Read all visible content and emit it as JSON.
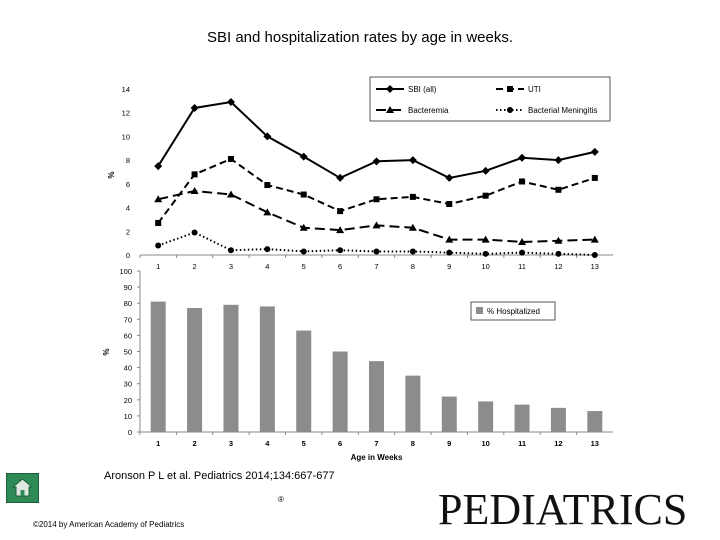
{
  "slide": {
    "title": "SBI and hospitalization rates by age in weeks.",
    "citation": "Aronson P L et al. Pediatrics 2014;134:667-677",
    "copyright": "©2014 by American Academy of Pediatrics",
    "journal_logo": "PEDIATRICS",
    "logo_mark": "®",
    "home_icon": "home-icon"
  },
  "chart_data": [
    {
      "type": "line",
      "x": [
        1,
        2,
        3,
        4,
        5,
        6,
        7,
        8,
        9,
        10,
        11,
        12,
        13
      ],
      "ylabel": "%",
      "xlabel": "",
      "ylim": [
        0,
        14
      ],
      "yticks": [
        0,
        2,
        4,
        6,
        8,
        10,
        12,
        14
      ],
      "grid": false,
      "legend_placement": "top-right",
      "series": [
        {
          "name": "SBI (all)",
          "marker": "diamond",
          "dash": "solid",
          "values": [
            7.5,
            12.4,
            12.9,
            10.0,
            8.3,
            6.5,
            7.9,
            8.0,
            6.5,
            7.1,
            8.2,
            8.0,
            8.7
          ]
        },
        {
          "name": "UTI",
          "marker": "square",
          "dash": "dashed",
          "values": [
            2.7,
            6.8,
            8.1,
            5.9,
            5.1,
            3.7,
            4.7,
            4.9,
            4.3,
            5.0,
            6.2,
            5.5,
            6.5
          ]
        },
        {
          "name": "Bacteremia",
          "marker": "triangle",
          "dash": "longdash",
          "values": [
            4.7,
            5.4,
            5.1,
            3.6,
            2.3,
            2.1,
            2.5,
            2.3,
            1.3,
            1.3,
            1.1,
            1.2,
            1.3
          ]
        },
        {
          "name": "Bacterial Meningitis",
          "marker": "circle",
          "dash": "dotted",
          "values": [
            0.8,
            1.9,
            0.4,
            0.5,
            0.3,
            0.4,
            0.3,
            0.3,
            0.2,
            0.1,
            0.2,
            0.1,
            0.0
          ]
        }
      ]
    },
    {
      "type": "bar",
      "categories": [
        "1",
        "2",
        "3",
        "4",
        "5",
        "6",
        "7",
        "8",
        "9",
        "10",
        "11",
        "12",
        "13"
      ],
      "xlabel": "Age in Weeks",
      "ylabel": "%",
      "ylim": [
        0,
        100
      ],
      "yticks": [
        0,
        10,
        20,
        30,
        40,
        50,
        60,
        70,
        80,
        90,
        100
      ],
      "grid": false,
      "legend_placement": "right",
      "series": [
        {
          "name": "% Hospitalized",
          "color": "#8c8c8c",
          "values": [
            81,
            77,
            79,
            78,
            63,
            50,
            44,
            35,
            22,
            19,
            17,
            15,
            13
          ]
        }
      ]
    }
  ]
}
